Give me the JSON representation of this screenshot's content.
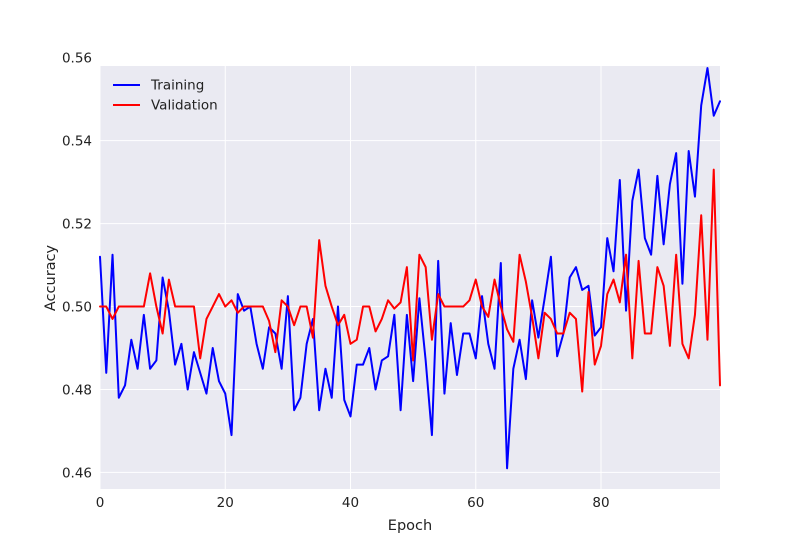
{
  "chart_data": {
    "type": "line",
    "xlabel": "Epoch",
    "ylabel": "Accuracy",
    "xlim": [
      0,
      99
    ],
    "ylim": [
      0.456,
      0.558
    ],
    "x_ticks": [
      0,
      20,
      40,
      60,
      80
    ],
    "y_ticks": [
      0.46,
      0.48,
      0.5,
      0.52,
      0.54,
      0.56
    ],
    "y_tick_labels": [
      "0.46",
      "0.48",
      "0.50",
      "0.52",
      "0.54",
      "0.56"
    ],
    "grid": true,
    "legend_position": "top-left",
    "series": [
      {
        "name": "Training",
        "color": "#0000ff",
        "values": [
          0.512,
          0.484,
          0.5125,
          0.478,
          0.481,
          0.492,
          0.485,
          0.498,
          0.485,
          0.487,
          0.507,
          0.499,
          0.486,
          0.491,
          0.48,
          0.489,
          0.484,
          0.479,
          0.49,
          0.482,
          0.479,
          0.469,
          0.503,
          0.499,
          0.5,
          0.491,
          0.485,
          0.495,
          0.4935,
          0.485,
          0.5025,
          0.475,
          0.478,
          0.491,
          0.497,
          0.475,
          0.485,
          0.478,
          0.5,
          0.4775,
          0.4735,
          0.486,
          0.486,
          0.49,
          0.48,
          0.487,
          0.488,
          0.498,
          0.475,
          0.498,
          0.482,
          0.502,
          0.487,
          0.469,
          0.511,
          0.479,
          0.496,
          0.4835,
          0.4935,
          0.4935,
          0.4875,
          0.5025,
          0.491,
          0.485,
          0.5105,
          0.461,
          0.485,
          0.492,
          0.4825,
          0.5015,
          0.4925,
          0.502,
          0.512,
          0.488,
          0.4935,
          0.507,
          0.5095,
          0.504,
          0.505,
          0.493,
          0.495,
          0.5165,
          0.5085,
          0.5305,
          0.499,
          0.5255,
          0.533,
          0.5165,
          0.5125,
          0.5315,
          0.515,
          0.5295,
          0.537,
          0.5055,
          0.5375,
          0.5265,
          0.5485,
          0.5575,
          0.546,
          0.5495
        ]
      },
      {
        "name": "Validation",
        "color": "#ff0000",
        "values": [
          0.5,
          0.5,
          0.497,
          0.5,
          0.5,
          0.5,
          0.5,
          0.5,
          0.508,
          0.5,
          0.4935,
          0.5065,
          0.5,
          0.5,
          0.5,
          0.5,
          0.4875,
          0.497,
          0.5,
          0.503,
          0.5,
          0.5015,
          0.4985,
          0.5,
          0.5,
          0.5,
          0.5,
          0.4965,
          0.489,
          0.5015,
          0.5,
          0.4955,
          0.5,
          0.5,
          0.4925,
          0.516,
          0.505,
          0.5,
          0.4955,
          0.498,
          0.491,
          0.492,
          0.5,
          0.5,
          0.494,
          0.497,
          0.5015,
          0.4995,
          0.501,
          0.5095,
          0.487,
          0.5125,
          0.5095,
          0.492,
          0.503,
          0.5,
          0.5,
          0.5,
          0.5,
          0.5015,
          0.5065,
          0.5,
          0.4975,
          0.5065,
          0.5,
          0.4945,
          0.4915,
          0.5125,
          0.506,
          0.4975,
          0.4875,
          0.4985,
          0.497,
          0.4935,
          0.4935,
          0.4985,
          0.497,
          0.4795,
          0.5035,
          0.486,
          0.4905,
          0.503,
          0.5065,
          0.501,
          0.5125,
          0.4875,
          0.511,
          0.4935,
          0.4935,
          0.5095,
          0.505,
          0.4905,
          0.5125,
          0.491,
          0.4875,
          0.498,
          0.522,
          0.492,
          0.533,
          0.481
        ]
      }
    ]
  }
}
